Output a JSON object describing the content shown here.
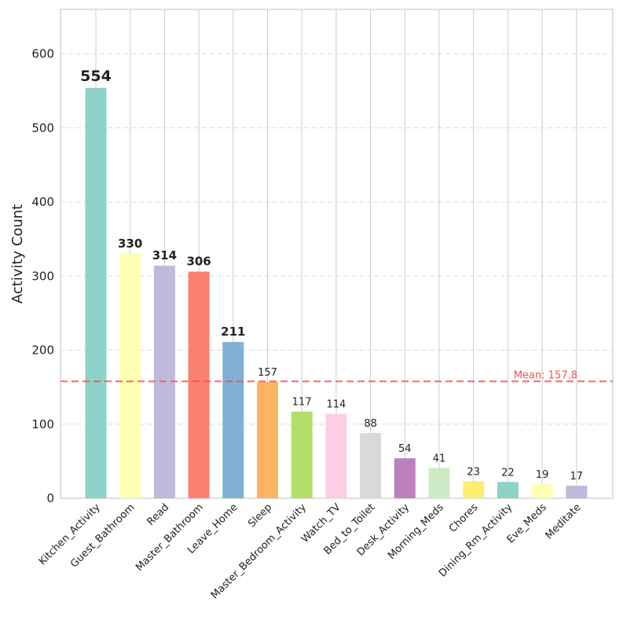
{
  "chart_data": {
    "type": "bar",
    "ylabel": "Activity Count",
    "xlabel": "",
    "ylim": [
      0,
      660
    ],
    "yticks": [
      0,
      100,
      200,
      300,
      400,
      500,
      600
    ],
    "grid": true,
    "categories": [
      "Kitchen_Activity",
      "Guest_Bathroom",
      "Read",
      "Master_Bathroom",
      "Leave_Home",
      "Sleep",
      "Master_Bedroom_Activity",
      "Watch_TV",
      "Bed_to_Toilet",
      "Desk_Activity",
      "Morning_Meds",
      "Chores",
      "Dining_Rm_Activity",
      "Eve_Meds",
      "Meditate"
    ],
    "values": [
      554,
      330,
      314,
      306,
      211,
      157,
      117,
      114,
      88,
      54,
      41,
      23,
      22,
      19,
      17
    ],
    "value_labels": [
      "554",
      "330",
      "314",
      "306",
      "211",
      "157",
      "117",
      "114",
      "88",
      "54",
      "41",
      "23",
      "22",
      "19",
      "17"
    ],
    "colors": [
      "#8dd3c7",
      "#ffffb3",
      "#bebada",
      "#fb8072",
      "#80b1d3",
      "#fdb462",
      "#b3de69",
      "#fccde5",
      "#d9d9d9",
      "#bc80bd",
      "#ccebc5",
      "#ffed6f",
      "#8dd3c7",
      "#ffffb3",
      "#bebada"
    ],
    "mean": 157.8,
    "mean_label": "Mean: 157.8",
    "mean_color": "#ff4d4d"
  }
}
